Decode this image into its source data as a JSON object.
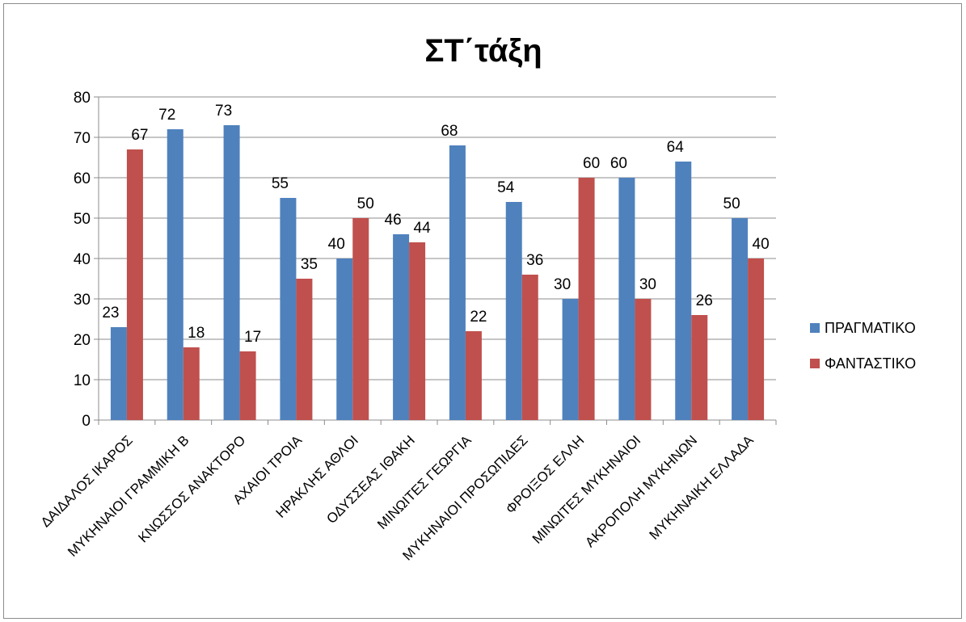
{
  "chart_data": {
    "type": "bar",
    "title": "ΣΤ΄τάξη",
    "xlabel": "",
    "ylabel": "",
    "ylim": [
      0,
      80
    ],
    "yticks": [
      0,
      10,
      20,
      30,
      40,
      50,
      60,
      70,
      80
    ],
    "grid": true,
    "legend_position": "right",
    "categories": [
      "ΔΑΙΔΑΛΟΣ ΙΚΑΡΟΣ",
      "ΜΥΚΗΝΑΙΟΙ ΓΡΑΜΜΙΚΗ Β",
      "ΚΝΩΣΣΟΣ ΑΝΑΚΤΟΡΟ",
      "ΑΧΑΙΟΙ ΤΡΟΙΑ",
      "ΗΡΑΚΛΗΣ ΑΘΛΟΙ",
      "ΟΔΥΣΣΕΑΣ ΙΘΑΚΗ",
      "ΜΙΝΩΙΤΕΣ ΓΕΩΡΓΙΑ",
      "ΜΥΚΗΝΑΙΟΙ ΠΡΟΣΩΠΙΔΕΣ",
      "ΦΡΟΙΞΟΣ ΕΛΛΗ",
      "ΜΙΝΩΙΤΕΣ ΜΥΚΗΝΑΙΟΙ",
      "ΑΚΡΟΠΟΛΗ ΜΥΚΗΝΩΝ",
      "ΜΥΚΗΝΑΙΚΗ ΕΛΛΑΔΑ"
    ],
    "series": [
      {
        "name": "ΠΡΑΓΜΑΤΙΚΟ",
        "color": "#4f81bd",
        "values": [
          23,
          72,
          73,
          55,
          40,
          46,
          68,
          54,
          30,
          60,
          64,
          50
        ]
      },
      {
        "name": "ΦΑΝΤΑΣΤΙΚΟ",
        "color": "#c0504d",
        "values": [
          67,
          18,
          17,
          35,
          50,
          44,
          22,
          36,
          60,
          30,
          26,
          40
        ]
      }
    ]
  }
}
